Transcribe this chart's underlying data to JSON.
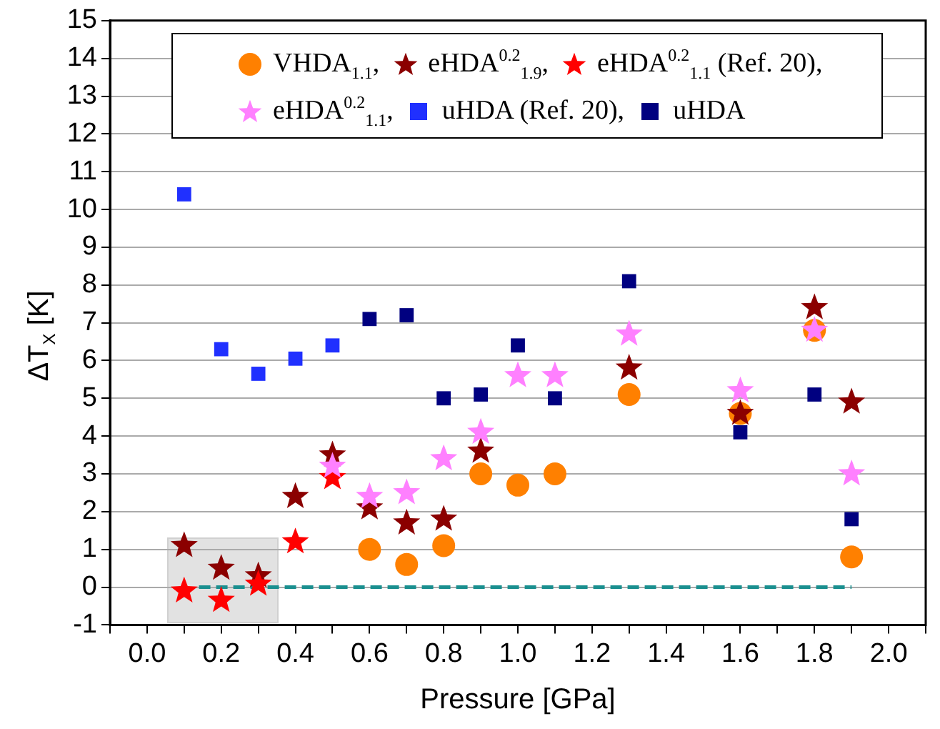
{
  "chart_data": {
    "type": "scatter",
    "xlabel": "Pressure [GPa]",
    "ylabel": "ΔT$_{X}$ [K]",
    "xlim": [
      -0.1,
      2.1
    ],
    "ylim": [
      -1,
      15
    ],
    "xticks": [
      {
        "value": -0.1,
        "label": null
      },
      {
        "value": 0,
        "label": "0.0"
      },
      {
        "value": 0.1,
        "label": null
      },
      0.2,
      {
        "value": 0.3,
        "label": null
      },
      0.4,
      {
        "value": 0.5,
        "label": null
      },
      0.6,
      {
        "value": 0.7,
        "label": null
      },
      0.8,
      {
        "value": 0.9,
        "label": null
      },
      {
        "value": 1,
        "label": "1.0"
      },
      {
        "value": 1.1,
        "label": null
      },
      1.2,
      {
        "value": 1.3,
        "label": null
      },
      1.4,
      {
        "value": 1.5,
        "label": null
      },
      1.6,
      {
        "value": 1.7,
        "label": null
      },
      1.8,
      {
        "value": 1.9,
        "label": null
      },
      {
        "value": 2,
        "label": "2.0"
      },
      {
        "value": 2.1,
        "label": null
      }
    ],
    "yticks": [
      -1,
      0,
      1,
      2,
      3,
      4,
      5,
      6,
      7,
      8,
      9,
      10,
      11,
      12,
      13,
      14,
      15
    ],
    "grid": "y",
    "legend": "top",
    "series": [
      {
        "name": "VHDA$_{1.1}$,",
        "color": "#ff8000",
        "marker": "circle",
        "x": [
          0.6,
          0.7,
          0.8,
          0.9,
          1.0,
          1.1,
          1.3,
          1.6,
          1.8,
          1.9
        ],
        "values": [
          1.0,
          0.6,
          1.1,
          3.0,
          2.7,
          3.0,
          5.1,
          4.6,
          6.8,
          0.8
        ]
      },
      {
        "name": "eHDA$^{0.2}$$_{1.9}$,",
        "color": "#8b0000",
        "marker": "star",
        "x": [
          0.1,
          0.2,
          0.3,
          0.4,
          0.5,
          0.6,
          0.7,
          0.8,
          0.9,
          1.3,
          1.6,
          1.8,
          1.9
        ],
        "values": [
          1.1,
          0.5,
          0.3,
          2.4,
          3.5,
          2.1,
          1.7,
          1.8,
          3.6,
          5.8,
          4.6,
          7.4,
          4.9
        ]
      },
      {
        "name": "eHDA$^{0.2}$$_{1.1}$ (Ref. 20),",
        "color": "#ff0000",
        "marker": "star",
        "x": [
          0.1,
          0.2,
          0.3,
          0.4,
          0.5
        ],
        "values": [
          -0.1,
          -0.35,
          0.08,
          1.2,
          2.9
        ]
      },
      {
        "name": "eHDA$^{0.2}$$_{1.1}$,",
        "color": "#ff80ff",
        "marker": "star",
        "x": [
          0.5,
          0.6,
          0.7,
          0.8,
          0.9,
          1.0,
          1.1,
          1.3,
          1.6,
          1.8,
          1.9
        ],
        "values": [
          3.2,
          2.4,
          2.5,
          3.4,
          4.1,
          5.6,
          5.6,
          6.7,
          5.2,
          6.8,
          3.0
        ]
      },
      {
        "name": "uHDA (Ref. 20),",
        "color": "#2030ff",
        "marker": "square",
        "x": [
          0.1,
          0.2,
          0.3,
          0.4,
          0.5
        ],
        "values": [
          10.4,
          6.3,
          5.65,
          6.05,
          6.4
        ]
      },
      {
        "name": "uHDA",
        "color": "#000080",
        "marker": "square",
        "x": [
          0.6,
          0.7,
          0.8,
          0.9,
          1.0,
          1.1,
          1.3,
          1.6,
          1.8,
          1.9
        ],
        "values": [
          7.1,
          7.2,
          5.0,
          5.1,
          6.4,
          5.0,
          8.1,
          4.1,
          5.1,
          1.8
        ]
      },
      {
        "type": "line",
        "color": "#1a8f8f",
        "line_style": "dashed",
        "marker": "none",
        "x": [
          0.14,
          1.9
        ],
        "values": [
          0,
          0
        ]
      }
    ]
  }
}
